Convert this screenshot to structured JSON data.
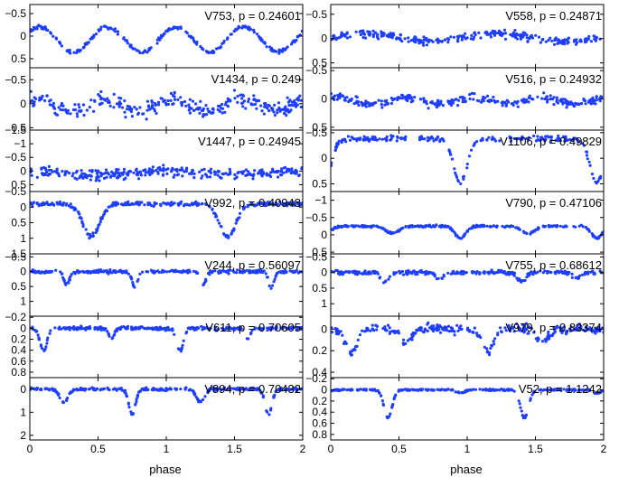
{
  "figure": {
    "xlabel": "phase"
  },
  "chart_data": [
    {
      "type": "scatter",
      "column": 0,
      "row": 0,
      "label": "V753, p = 0.24601",
      "xlim": [
        0,
        2
      ],
      "ylim": [
        0.7,
        -0.7
      ],
      "yticks": [
        {
          "v": -0.5,
          "t": "−0.5"
        },
        {
          "v": 0,
          "t": "0"
        },
        {
          "v": 0.5,
          "t": "0.5"
        }
      ],
      "xticks": [
        0,
        0.5,
        1,
        1.5,
        2
      ],
      "curve": {
        "kind": "wave",
        "base": -0.2,
        "amp": 0.55,
        "per": 0.5,
        "off": 0.07,
        "noise": 0.04,
        "n": 260
      }
    },
    {
      "type": "scatter",
      "column": 0,
      "row": 1,
      "label": "V1434, p = 0.249",
      "xlim": [
        0,
        2
      ],
      "ylim": [
        0.55,
        -0.75
      ],
      "yticks": [
        {
          "v": -0.5,
          "t": "−0.5"
        },
        {
          "v": 0,
          "t": "0"
        },
        {
          "v": 0.5,
          "t": "0.5"
        }
      ],
      "xticks": [
        0,
        0.5,
        1,
        1.5,
        2
      ],
      "curve": {
        "kind": "wave",
        "base": -0.1,
        "amp": 0.25,
        "per": 0.5,
        "off": 0.05,
        "noise": 0.16,
        "n": 300
      }
    },
    {
      "type": "scatter",
      "column": 0,
      "row": 2,
      "label": "V1447, p = 0.24945",
      "xlim": [
        0,
        2
      ],
      "ylim": [
        0.75,
        -1.5
      ],
      "yticks": [
        {
          "v": -1.5,
          "t": "−1.5"
        },
        {
          "v": -1,
          "t": "−1"
        },
        {
          "v": -0.5,
          "t": "−0.5"
        },
        {
          "v": 0,
          "t": "0"
        },
        {
          "v": 0.5,
          "t": "0.5"
        }
      ],
      "xticks": [
        0,
        0.5,
        1,
        1.5,
        2
      ],
      "curve": {
        "kind": "wave",
        "base": 0.0,
        "amp": 0.15,
        "per": 1.0,
        "off": 0.0,
        "noise": 0.18,
        "n": 300
      }
    },
    {
      "type": "scatter",
      "column": 0,
      "row": 3,
      "label": "V992, p = 0.40948",
      "xlim": [
        0,
        2
      ],
      "ylim": [
        1.5,
        -0.5
      ],
      "yticks": [
        {
          "v": -0.5,
          "t": "−0.5"
        },
        {
          "v": 0,
          "t": "0"
        },
        {
          "v": 0.5,
          "t": "0.5"
        },
        {
          "v": 1,
          "t": "1"
        },
        {
          "v": 1.5,
          "t": "1.5"
        }
      ],
      "xticks": [
        0,
        0.5,
        1,
        1.5,
        2
      ],
      "curve": {
        "kind": "eclipse",
        "base": -0.1,
        "dips": [
          [
            0.45,
            1.05,
            0.06
          ]
        ],
        "noise": 0.07,
        "n": 300
      }
    },
    {
      "type": "scatter",
      "column": 0,
      "row": 4,
      "label": "V244, p = 0.56097",
      "xlim": [
        0,
        2
      ],
      "ylim": [
        1.5,
        -0.6
      ],
      "yticks": [
        {
          "v": -0.5,
          "t": "−0.5"
        },
        {
          "v": 0,
          "t": "0"
        },
        {
          "v": 0.5,
          "t": "0.5"
        },
        {
          "v": 1,
          "t": "1"
        }
      ],
      "xticks": [
        0,
        0.5,
        1,
        1.5,
        2
      ],
      "curve": {
        "kind": "eclipse",
        "base": 0.0,
        "dips": [
          [
            0.27,
            0.45,
            0.02
          ],
          [
            0.77,
            0.55,
            0.02
          ]
        ],
        "noise": 0.05,
        "n": 300
      }
    },
    {
      "type": "scatter",
      "column": 0,
      "row": 5,
      "label": "V611, p = 0.70605",
      "xlim": [
        0,
        2
      ],
      "ylim": [
        0.9,
        -0.22
      ],
      "yticks": [
        {
          "v": -0.2,
          "t": "−0.2"
        },
        {
          "v": 0,
          "t": "0"
        },
        {
          "v": 0.2,
          "t": "0.2"
        },
        {
          "v": 0.4,
          "t": "0.4"
        },
        {
          "v": 0.6,
          "t": "0.6"
        },
        {
          "v": 0.8,
          "t": "0.8"
        }
      ],
      "xticks": [
        0,
        0.5,
        1,
        1.5,
        2
      ],
      "curve": {
        "kind": "eclipse",
        "base": 0.0,
        "dips": [
          [
            0.1,
            0.42,
            0.025
          ],
          [
            0.6,
            0.18,
            0.02
          ]
        ],
        "noise": 0.03,
        "n": 300
      }
    },
    {
      "type": "scatter",
      "column": 0,
      "row": 6,
      "label": "V894, p = 0.70432",
      "xlim": [
        0,
        2
      ],
      "ylim": [
        2.2,
        -0.5
      ],
      "yticks": [
        {
          "v": 0,
          "t": "0"
        },
        {
          "v": 1,
          "t": "1"
        },
        {
          "v": 2,
          "t": "2"
        }
      ],
      "xticks": [
        {
          "v": 0,
          "t": "0"
        },
        {
          "v": 0.5,
          "t": "0.5"
        },
        {
          "v": 1,
          "t": "1"
        },
        {
          "v": 1.5,
          "t": "1.5"
        },
        {
          "v": 2,
          "t": "2"
        }
      ],
      "curve": {
        "kind": "eclipse",
        "base": 0.0,
        "dips": [
          [
            0.25,
            0.55,
            0.03
          ],
          [
            0.75,
            1.1,
            0.025
          ]
        ],
        "noise": 0.06,
        "n": 300
      }
    },
    {
      "type": "scatter",
      "column": 1,
      "row": 0,
      "label": "V558, p = 0.24871",
      "xlim": [
        0,
        2
      ],
      "ylim": [
        0.6,
        -0.7
      ],
      "yticks": [
        {
          "v": -0.5,
          "t": "−0.5"
        },
        {
          "v": 0,
          "t": "0"
        },
        {
          "v": 0.5,
          "t": "0.5"
        }
      ],
      "xticks": [
        0,
        0.5,
        1,
        1.5,
        2
      ],
      "curve": {
        "kind": "wave",
        "base": -0.1,
        "amp": 0.16,
        "per": 1.0,
        "off": 0.25,
        "noise": 0.08,
        "n": 280
      }
    },
    {
      "type": "scatter",
      "column": 1,
      "row": 1,
      "label": "V516, p = 0.24932",
      "xlim": [
        0,
        2
      ],
      "ylim": [
        0.55,
        -0.55
      ],
      "yticks": [
        {
          "v": -0.5,
          "t": "−0.5"
        },
        {
          "v": 0,
          "t": "0"
        },
        {
          "v": 0.5,
          "t": "0.5"
        }
      ],
      "xticks": [
        0,
        0.5,
        1,
        1.5,
        2
      ],
      "curve": {
        "kind": "wave",
        "base": -0.03,
        "amp": 0.12,
        "per": 0.5,
        "off": 0.05,
        "noise": 0.07,
        "n": 280
      }
    },
    {
      "type": "scatter",
      "column": 1,
      "row": 2,
      "label": "V1106, p = 0.49829",
      "xlim": [
        0,
        2
      ],
      "ylim": [
        0.65,
        -0.55
      ],
      "yticks": [
        {
          "v": -0.5,
          "t": "−0.5"
        },
        {
          "v": 0,
          "t": "0"
        },
        {
          "v": 0.5,
          "t": "0.5"
        }
      ],
      "xticks": [
        0,
        0.5,
        1,
        1.5,
        2
      ],
      "curve": {
        "kind": "eclipse",
        "base": -0.38,
        "dips": [
          [
            0.95,
            0.85,
            0.05
          ]
        ],
        "noise": 0.05,
        "n": 240
      }
    },
    {
      "type": "scatter",
      "column": 1,
      "row": 3,
      "label": "V790, p = 0.47106",
      "xlim": [
        0,
        2
      ],
      "ylim": [
        0.55,
        -1.25
      ],
      "yticks": [
        {
          "v": -1,
          "t": "−1"
        },
        {
          "v": -0.5,
          "t": "−0.5"
        },
        {
          "v": 0,
          "t": "0"
        },
        {
          "v": 0.5,
          "t": "0.5"
        }
      ],
      "xticks": [
        0,
        0.5,
        1,
        1.5,
        2
      ],
      "curve": {
        "kind": "eclipse",
        "base": -0.25,
        "dips": [
          [
            0.45,
            0.2,
            0.05
          ],
          [
            0.95,
            0.35,
            0.04
          ]
        ],
        "noise": 0.03,
        "n": 300
      }
    },
    {
      "type": "scatter",
      "column": 1,
      "row": 4,
      "label": "V755, p = 0.68612",
      "xlim": [
        0,
        2
      ],
      "ylim": [
        1.4,
        -0.6
      ],
      "yticks": [
        {
          "v": -0.5,
          "t": "−0.5"
        },
        {
          "v": 0,
          "t": "0"
        },
        {
          "v": 0.5,
          "t": "0.5"
        },
        {
          "v": 1,
          "t": "1"
        }
      ],
      "xticks": [
        0,
        0.5,
        1,
        1.5,
        2
      ],
      "curve": {
        "kind": "eclipse",
        "base": 0.0,
        "dips": [
          [
            0.4,
            0.3,
            0.03
          ],
          [
            0.8,
            0.2,
            0.03
          ]
        ],
        "noise": 0.06,
        "n": 300
      }
    },
    {
      "type": "scatter",
      "column": 1,
      "row": 5,
      "label": "V979, p = 0.83374",
      "xlim": [
        0,
        2
      ],
      "ylim": [
        0.45,
        -0.12
      ],
      "yticks": [
        {
          "v": 0,
          "t": "0"
        },
        {
          "v": 0.2,
          "t": "0.2"
        },
        {
          "v": 0.4,
          "t": "0.4"
        }
      ],
      "xticks": [
        0,
        0.5,
        1,
        1.5,
        2
      ],
      "curve": {
        "kind": "eclipse",
        "base": 0.0,
        "dips": [
          [
            0.15,
            0.22,
            0.04
          ],
          [
            0.55,
            0.12,
            0.04
          ]
        ],
        "noise": 0.04,
        "n": 300
      }
    },
    {
      "type": "scatter",
      "column": 1,
      "row": 6,
      "label": "V52, p = 1.1242",
      "xlim": [
        0,
        2
      ],
      "ylim": [
        0.9,
        -0.22
      ],
      "yticks": [
        {
          "v": -0.2,
          "t": "−0.2"
        },
        {
          "v": 0,
          "t": "0"
        },
        {
          "v": 0.2,
          "t": "0.2"
        },
        {
          "v": 0.4,
          "t": "0.4"
        },
        {
          "v": 0.6,
          "t": "0.6"
        },
        {
          "v": 0.8,
          "t": "0.8"
        }
      ],
      "xticks": [
        {
          "v": 0,
          "t": "0"
        },
        {
          "v": 0.5,
          "t": "0.5"
        },
        {
          "v": 1,
          "t": "1"
        },
        {
          "v": 1.5,
          "t": "1.5"
        },
        {
          "v": 2,
          "t": "2"
        }
      ],
      "curve": {
        "kind": "eclipse",
        "base": 0.0,
        "dips": [
          [
            0.42,
            0.5,
            0.03
          ],
          [
            0.95,
            0.06,
            0.03
          ]
        ],
        "noise": 0.015,
        "n": 300
      }
    }
  ],
  "colors": {
    "points": "#1f3fff",
    "axes": "#000000"
  }
}
